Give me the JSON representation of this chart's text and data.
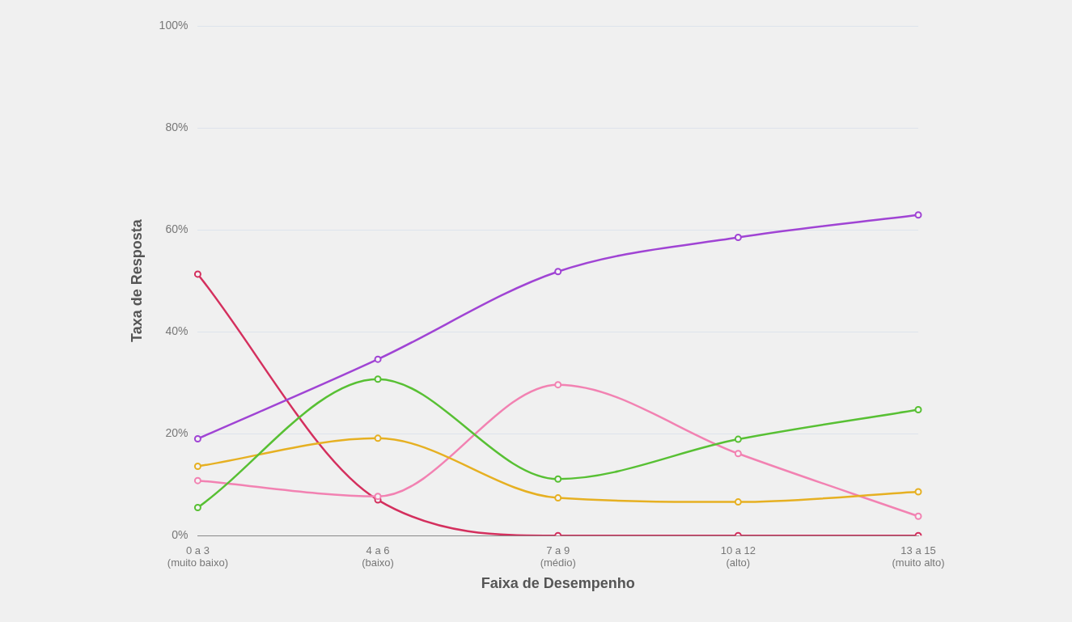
{
  "chart_data": {
    "type": "line",
    "xlabel": "Faixa de Desempenho",
    "ylabel": "Taxa de Resposta",
    "categories": [
      "0 a 3\n(muito baixo)",
      "4 a 6\n(baixo)",
      "7 a 9\n(médio)",
      "10 a 12\n(alto)",
      "13 a 15\n(muito alto)"
    ],
    "series": [
      {
        "color": "#a044d4",
        "values": [
          19,
          34.6,
          51.8,
          58.5,
          62.9
        ]
      },
      {
        "color": "#58c034",
        "values": [
          5.5,
          30.7,
          11.1,
          18.9,
          24.7
        ]
      },
      {
        "color": "#e6b022",
        "values": [
          13.6,
          19.1,
          7.4,
          6.6,
          8.6
        ]
      },
      {
        "color": "#f282b2",
        "values": [
          10.8,
          7.7,
          29.6,
          16.1,
          3.8
        ]
      },
      {
        "color": "#d4305e",
        "values": [
          51.3,
          7,
          0,
          0,
          0
        ]
      }
    ],
    "ylim": [
      0,
      100
    ],
    "yticks": [
      {
        "value": 0,
        "label": "0%"
      },
      {
        "value": 20,
        "label": "20%"
      },
      {
        "value": 40,
        "label": "40%"
      },
      {
        "value": 60,
        "label": "60%"
      },
      {
        "value": 80,
        "label": "80%"
      },
      {
        "value": 100,
        "label": "100%"
      }
    ],
    "grid": "y",
    "legend": false,
    "marker": "circle",
    "line_style": "solid"
  }
}
